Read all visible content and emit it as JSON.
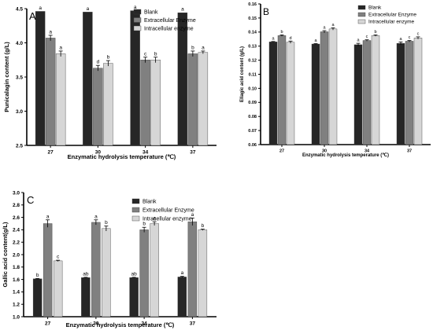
{
  "figure": {
    "panels": [
      {
        "label": "A",
        "xlabel": "Enzymatic hydrolysis temperature (℃)",
        "ylabel": "Punicalagin content (g/L)"
      },
      {
        "label": "B",
        "xlabel": "Enzymatic hydrolysis temperature (℃)",
        "ylabel": "Ellagic acid content (g/L)"
      },
      {
        "label": "C",
        "xlabel": "Enzymatic hydrolysis temperature (℃)",
        "ylabel": "Gallic acid content(g/L)"
      }
    ]
  },
  "chart_data": [
    {
      "type": "bar",
      "panel": "A",
      "categories": [
        "27",
        "30",
        "34",
        "37"
      ],
      "xlabel": "Enzymatic hydrolysis temperature (℃)",
      "ylabel": "Punicalagin content (g/L)",
      "ylim": [
        2.5,
        4.5
      ],
      "yticks": [
        2.5,
        3.0,
        3.5,
        4.0,
        4.5
      ],
      "ytick_labels": [
        "2.5",
        "3.0",
        "3.5",
        "4.0",
        "4.5"
      ],
      "legend": "top-right",
      "series": [
        {
          "name": "Blank",
          "color": "#262626",
          "values": [
            4.46,
            4.45,
            4.47,
            4.44
          ],
          "errors": [
            0,
            0,
            0,
            0
          ],
          "letters": [
            "a",
            "a",
            "a",
            "a"
          ]
        },
        {
          "name": "Extracellular Enzyme",
          "color": "#808080",
          "values": [
            4.07,
            3.63,
            3.75,
            3.84
          ],
          "errors": [
            0.04,
            0.04,
            0.04,
            0.04
          ],
          "letters": [
            "a",
            "d",
            "c",
            "b"
          ]
        },
        {
          "name": "Intracellular enzyme",
          "color": "#d6d6d6",
          "values": [
            3.84,
            3.7,
            3.75,
            3.86
          ],
          "errors": [
            0.04,
            0.04,
            0.04,
            0.02
          ],
          "letters": [
            "a",
            "b",
            "b",
            "a"
          ]
        }
      ]
    },
    {
      "type": "bar",
      "panel": "B",
      "categories": [
        "27",
        "30",
        "34",
        "37"
      ],
      "xlabel": "Enzymatic hydrolysis temperature (℃)",
      "ylabel": "Ellagic acid content (g/L)",
      "ylim": [
        0.06,
        0.16
      ],
      "yticks": [
        0.06,
        0.07,
        0.08,
        0.09,
        0.1,
        0.11,
        0.12,
        0.13,
        0.14,
        0.15,
        0.16
      ],
      "ytick_labels": [
        "0.06",
        "0.07",
        "0.08",
        "0.09",
        "0.10",
        "0.11",
        "0.12",
        "0.13",
        "0.14",
        "0.15",
        "0.16"
      ],
      "legend": "top-right",
      "series": [
        {
          "name": "Blank",
          "color": "#262626",
          "values": [
            0.133,
            0.1315,
            0.131,
            0.132
          ],
          "errors": [
            0.0003,
            0.0003,
            0.001,
            0.001
          ],
          "letters": [
            "a",
            "a",
            "a",
            "a"
          ]
        },
        {
          "name": "Extracellular Enzyme",
          "color": "#808080",
          "values": [
            0.1375,
            0.1402,
            0.134,
            0.1335
          ],
          "errors": [
            0.0005,
            0.0008,
            0.0005,
            0.0005
          ],
          "letters": [
            "b",
            "a",
            "c",
            "c"
          ]
        },
        {
          "name": "Intracellular enzyme",
          "color": "#d6d6d6",
          "values": [
            0.1328,
            0.1422,
            0.1375,
            0.1358
          ],
          "errors": [
            0.0008,
            0.0008,
            0.0005,
            0.0008
          ],
          "letters": [
            "d",
            "a",
            "b",
            "c"
          ]
        }
      ]
    },
    {
      "type": "bar",
      "panel": "C",
      "categories": [
        "27",
        "30",
        "34",
        "37"
      ],
      "xlabel": "Enzymatic hydrolysis temperature (℃)",
      "ylabel": "Gallic acid content(g/L)",
      "ylim": [
        1.0,
        3.0
      ],
      "yticks": [
        1.0,
        1.2,
        1.4,
        1.6,
        1.8,
        2.0,
        2.2,
        2.4,
        2.6,
        2.8,
        3.0
      ],
      "ytick_labels": [
        "1.0",
        "1.2",
        "1.4",
        "1.6",
        "1.8",
        "2.0",
        "2.2",
        "2.4",
        "2.6",
        "2.8",
        "3.0"
      ],
      "legend": "top-right",
      "series": [
        {
          "name": "Blank",
          "color": "#262626",
          "values": [
            1.61,
            1.63,
            1.63,
            1.64
          ],
          "errors": [
            0.005,
            0.005,
            0.005,
            0.01
          ],
          "letters": [
            "b",
            "ab",
            "ab",
            "a"
          ]
        },
        {
          "name": "Extracellular Enzyme",
          "color": "#808080",
          "values": [
            2.5,
            2.52,
            2.4,
            2.53
          ],
          "errors": [
            0.06,
            0.04,
            0.04,
            0.06
          ],
          "letters": [
            "a",
            "a",
            "b",
            "a"
          ]
        },
        {
          "name": "Intracellular enzyme",
          "color": "#d6d6d6",
          "values": [
            1.9,
            2.42,
            2.5,
            2.4
          ],
          "errors": [
            0.01,
            0.04,
            0.03,
            0.01
          ],
          "letters": [
            "c",
            "b",
            "a",
            "b"
          ]
        }
      ]
    }
  ]
}
